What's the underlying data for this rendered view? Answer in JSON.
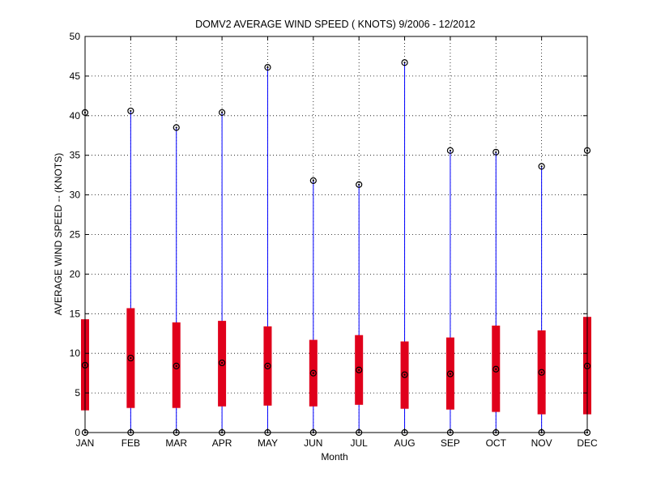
{
  "chart_data": {
    "type": "box",
    "title": "DOMV2  AVERAGE WIND SPEED ( KNOTS) 9/2006 - 12/2012",
    "xlabel": "Month",
    "ylabel": "AVERAGE WIND SPEED -- (KNOTS)",
    "ylim": [
      0,
      50
    ],
    "yticks": [
      0,
      5,
      10,
      15,
      20,
      25,
      30,
      35,
      40,
      45,
      50
    ],
    "grid": true,
    "categories": [
      "JAN",
      "FEB",
      "MAR",
      "APR",
      "MAY",
      "JUN",
      "JUL",
      "AUG",
      "SEP",
      "OCT",
      "NOV",
      "DEC"
    ],
    "min": [
      0,
      0,
      0,
      0,
      0,
      0,
      0,
      0,
      0,
      0,
      0,
      0
    ],
    "q1": [
      2.8,
      3.1,
      3.1,
      3.3,
      3.4,
      3.3,
      3.5,
      3.0,
      2.9,
      2.6,
      2.3,
      2.3
    ],
    "median": [
      8.5,
      9.4,
      8.4,
      8.8,
      8.4,
      7.5,
      7.9,
      7.3,
      7.4,
      8.0,
      7.6,
      8.4
    ],
    "q3": [
      14.3,
      15.7,
      13.9,
      14.1,
      13.4,
      11.7,
      12.3,
      11.5,
      12.0,
      13.5,
      12.9,
      14.6
    ],
    "max": [
      40.4,
      40.6,
      38.5,
      40.4,
      46.1,
      31.8,
      31.3,
      46.7,
      35.6,
      35.4,
      33.6,
      35.6
    ],
    "colors": {
      "whisker": "#0000ff",
      "box": "#e0001b",
      "marker": "#000000",
      "grid": "#000000",
      "axis": "#000000"
    }
  }
}
